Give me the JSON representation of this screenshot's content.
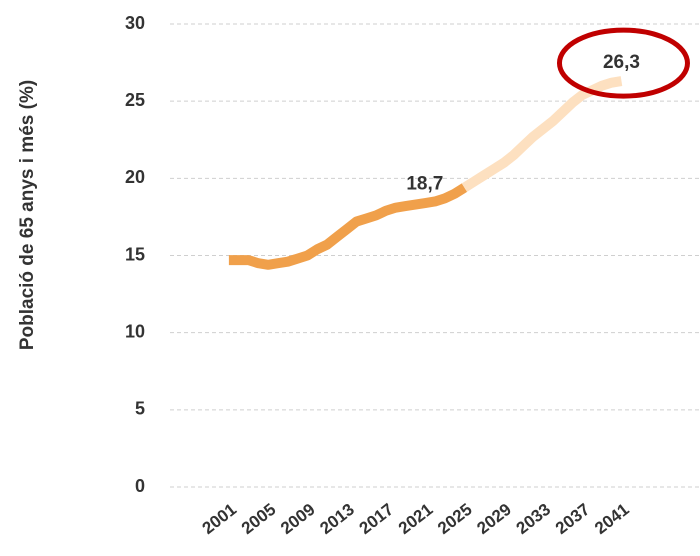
{
  "chart_data": {
    "type": "line",
    "y_label": "Població de 65 anys i més (%)",
    "x": [
      2001,
      2002,
      2003,
      2004,
      2005,
      2006,
      2007,
      2008,
      2009,
      2010,
      2011,
      2012,
      2013,
      2014,
      2015,
      2016,
      2017,
      2018,
      2019,
      2020,
      2021,
      2022,
      2023,
      2024,
      2025,
      2026,
      2027,
      2028,
      2029,
      2030,
      2031,
      2032,
      2033,
      2034,
      2035,
      2036,
      2037,
      2038,
      2039,
      2040,
      2041
    ],
    "series": [
      {
        "color": "#f0a04b",
        "values": [
          14.7,
          14.7,
          14.7,
          14.5,
          14.4,
          14.5,
          14.6,
          14.8,
          15.0,
          15.4,
          15.7,
          16.2,
          16.7,
          17.2,
          17.4,
          17.6,
          17.9,
          18.1,
          18.2,
          18.3,
          18.4,
          18.5,
          18.7,
          19.0,
          19.4,
          null,
          null,
          null,
          null,
          null,
          null,
          null,
          null,
          null,
          null,
          null,
          null,
          null,
          null,
          null,
          null
        ],
        "value_labels": [
          null,
          null,
          null,
          null,
          null,
          null,
          null,
          null,
          null,
          null,
          null,
          null,
          null,
          null,
          null,
          null,
          null,
          null,
          null,
          null,
          null,
          null,
          "18,7",
          null,
          null,
          null,
          null,
          null,
          null,
          null,
          null,
          null,
          null,
          null,
          null,
          null,
          null,
          null,
          null,
          null,
          null
        ]
      },
      {
        "color": "#fde0c0",
        "values": [
          null,
          null,
          null,
          null,
          null,
          null,
          null,
          null,
          null,
          null,
          null,
          null,
          null,
          null,
          null,
          null,
          null,
          null,
          null,
          null,
          null,
          null,
          null,
          null,
          19.4,
          19.8,
          20.2,
          20.6,
          21.0,
          21.5,
          22.1,
          22.7,
          23.2,
          23.7,
          24.3,
          24.9,
          25.4,
          25.7,
          26.0,
          26.2,
          26.3
        ],
        "value_labels": [
          null,
          null,
          null,
          null,
          null,
          null,
          null,
          null,
          null,
          null,
          null,
          null,
          null,
          null,
          null,
          null,
          null,
          null,
          null,
          null,
          null,
          null,
          null,
          null,
          null,
          null,
          null,
          null,
          null,
          null,
          null,
          null,
          null,
          null,
          null,
          null,
          null,
          null,
          null,
          null,
          "26,3"
        ],
        "highlight_color": "#c00000"
      }
    ],
    "xlim": [
      1995,
      2049
    ],
    "xticks": [
      2001,
      2005,
      2009,
      2013,
      2017,
      2021,
      2025,
      2029,
      2033,
      2037,
      2041
    ],
    "ylim": [
      0,
      30
    ],
    "yticks": [
      0,
      5,
      10,
      15,
      20,
      25,
      30
    ],
    "grid": true
  }
}
